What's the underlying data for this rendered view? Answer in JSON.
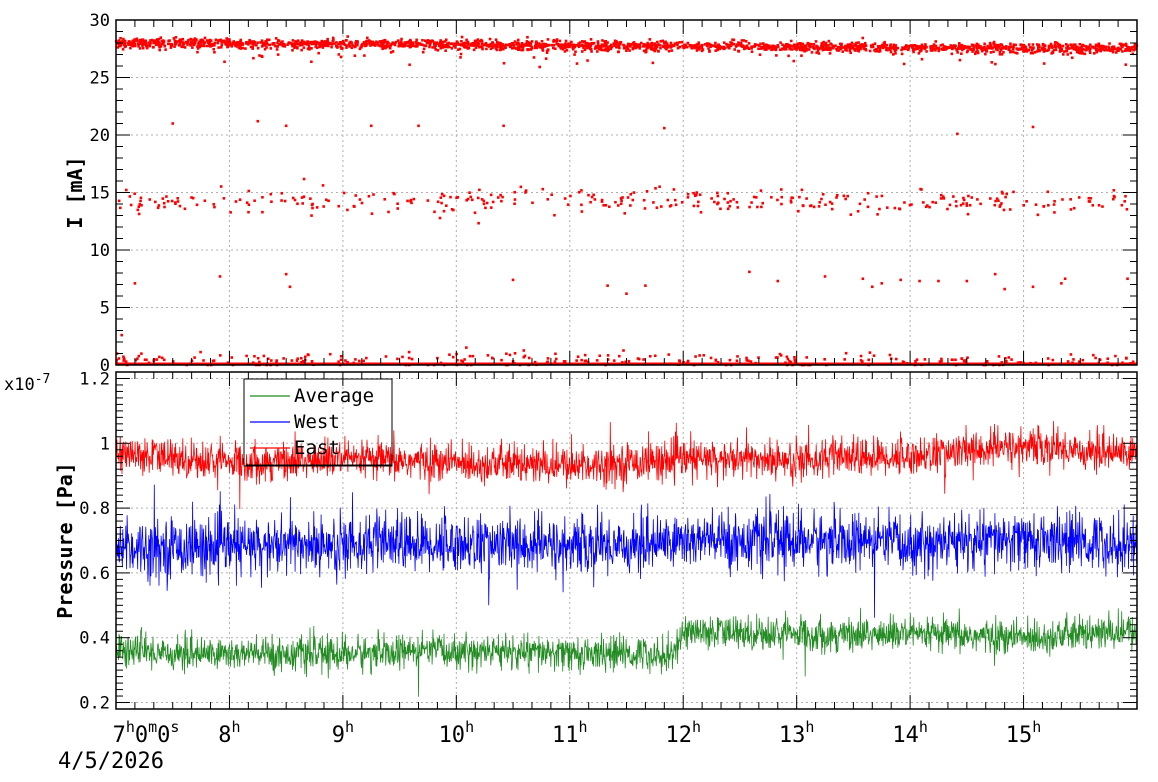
{
  "chart_data": [
    {
      "type": "scatter",
      "ylabel": "I [mA]",
      "ylim": [
        0,
        30
      ],
      "yticks": [
        "0",
        "5",
        "10",
        "15",
        "20",
        "25",
        "30"
      ],
      "grid": true,
      "color": "#ff0000",
      "series": [
        {
          "bands": [
            {
              "level": 28,
              "spread": 0.35,
              "trend_end": 27.5,
              "density": "high"
            },
            {
              "level": 14.2,
              "spread": 0.55,
              "density": "medium"
            },
            {
              "level": 0.4,
              "spread": 0.5,
              "density": "medium"
            },
            {
              "level": 0,
              "spread": 0,
              "density": "continuous"
            }
          ],
          "outliers": [
            {
              "x": "07:30",
              "y": 21
            },
            {
              "x": "08:15",
              "y": 21.2
            },
            {
              "x": "08:30",
              "y": 20.8
            },
            {
              "x": "09:15",
              "y": 20.8
            },
            {
              "x": "09:40",
              "y": 20.8
            },
            {
              "x": "10:25",
              "y": 20.8
            },
            {
              "x": "11:50",
              "y": 20.6
            },
            {
              "x": "14:25",
              "y": 20.1
            },
            {
              "x": "15:05",
              "y": 20.7
            },
            {
              "x": "07:10",
              "y": 7.1
            },
            {
              "x": "07:55",
              "y": 7.7
            },
            {
              "x": "08:30",
              "y": 7.9
            },
            {
              "x": "08:32",
              "y": 6.8
            },
            {
              "x": "10:30",
              "y": 7.4
            },
            {
              "x": "11:20",
              "y": 6.9
            },
            {
              "x": "11:30",
              "y": 6.2
            },
            {
              "x": "11:40",
              "y": 6.9
            },
            {
              "x": "12:35",
              "y": 8.1
            },
            {
              "x": "12:50",
              "y": 7.3
            },
            {
              "x": "13:15",
              "y": 7.7
            },
            {
              "x": "13:35",
              "y": 7.5
            },
            {
              "x": "13:40",
              "y": 6.8
            },
            {
              "x": "13:45",
              "y": 7.1
            },
            {
              "x": "13:55",
              "y": 7.4
            },
            {
              "x": "14:05",
              "y": 7.3
            },
            {
              "x": "14:15",
              "y": 7.3
            },
            {
              "x": "14:30",
              "y": 7.3
            },
            {
              "x": "14:45",
              "y": 7.9
            },
            {
              "x": "14:50",
              "y": 6.6
            },
            {
              "x": "15:05",
              "y": 6.8
            },
            {
              "x": "15:20",
              "y": 7.1
            },
            {
              "x": "15:22",
              "y": 7.5
            },
            {
              "x": "15:55",
              "y": 7.5
            },
            {
              "x": "07:03",
              "y": 2.6
            }
          ]
        }
      ]
    },
    {
      "type": "line",
      "ylabel": "Pressure [Pa]",
      "yscale": "x10^-7",
      "ylim": [
        0.18,
        1.22
      ],
      "yticks": [
        "0.2",
        "0.4",
        "0.6",
        "0.8",
        "1",
        "1.2"
      ],
      "grid": true,
      "legend_position": "top-left",
      "series": [
        {
          "name": "Average",
          "color": "#228b22",
          "points": [
            [
              "07:00",
              0.36
            ],
            [
              "08:00",
              0.35
            ],
            [
              "09:00",
              0.35
            ],
            [
              "10:00",
              0.36
            ],
            [
              "11:00",
              0.35
            ],
            [
              "11:55",
              0.35
            ],
            [
              "12:00",
              0.42
            ],
            [
              "13:00",
              0.41
            ],
            [
              "14:00",
              0.41
            ],
            [
              "15:00",
              0.4
            ],
            [
              "16:00",
              0.42
            ]
          ],
          "noise": 0.045
        },
        {
          "name": "West",
          "color": "#0000ff",
          "points": [
            [
              "07:00",
              0.68
            ],
            [
              "08:00",
              0.68
            ],
            [
              "09:00",
              0.69
            ],
            [
              "10:00",
              0.69
            ],
            [
              "11:00",
              0.68
            ],
            [
              "12:00",
              0.7
            ],
            [
              "13:00",
              0.7
            ],
            [
              "14:00",
              0.69
            ],
            [
              "15:00",
              0.7
            ],
            [
              "16:00",
              0.69
            ]
          ],
          "noise": 0.075
        },
        {
          "name": "East",
          "color": "#ff0000",
          "points": [
            [
              "07:00",
              0.97
            ],
            [
              "08:00",
              0.94
            ],
            [
              "09:00",
              0.95
            ],
            [
              "10:00",
              0.94
            ],
            [
              "11:00",
              0.93
            ],
            [
              "12:00",
              0.95
            ],
            [
              "13:00",
              0.95
            ],
            [
              "14:00",
              0.96
            ],
            [
              "15:00",
              0.99
            ],
            [
              "16:00",
              0.97
            ]
          ],
          "noise": 0.05
        }
      ]
    }
  ],
  "x_axis": {
    "range": [
      "07:00",
      "16:00"
    ],
    "ticks": [
      {
        "time": "07:00",
        "hour": "7",
        "suffix": "0",
        "suffix2": "0"
      },
      {
        "time": "08:00",
        "hour": "8"
      },
      {
        "time": "09:00",
        "hour": "9"
      },
      {
        "time": "10:00",
        "hour": "10"
      },
      {
        "time": "11:00",
        "hour": "11"
      },
      {
        "time": "12:00",
        "hour": "12"
      },
      {
        "time": "13:00",
        "hour": "13"
      },
      {
        "time": "14:00",
        "hour": "14"
      },
      {
        "time": "15:00",
        "hour": "15"
      }
    ],
    "date": "4/5/2026"
  },
  "pressure_multiplier": "x10",
  "pressure_exponent": "-7"
}
